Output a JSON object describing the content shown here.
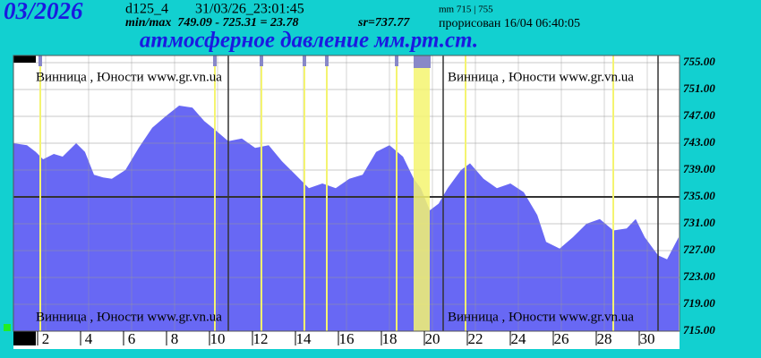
{
  "chart_data": {
    "type": "area",
    "period": "03/2026",
    "station": "d125_4",
    "timestamp": "31/03/26_23:01:45",
    "minmax": "min/max  749.09 - 725.31 = 23.78",
    "mean": "sr=737.77",
    "range_note": "mm 715 | 755",
    "drawn": "прорисован 16/04 06:40:05",
    "title": "атмосферное давление мм.рт.ст.",
    "watermark": "Винница , Юности  www.gr.vn.ua",
    "x": [
      0.5,
      1.13,
      1.54,
      1.88,
      2.38,
      2.79,
      3.42,
      3.83,
      4.25,
      4.67,
      5.08,
      5.71,
      6.33,
      6.96,
      7.58,
      8.21,
      8.83,
      9.38,
      9.88,
      10.5,
      11.13,
      11.75,
      12.38,
      13,
      13.63,
      14.25,
      14.88,
      15.5,
      16.13,
      16.75,
      17.38,
      18,
      18.63,
      19.13,
      19.46,
      19.88,
      20.29,
      20.71,
      21.33,
      21.75,
      22.38,
      23,
      23.63,
      24.25,
      24.88,
      25.29,
      25.92,
      26.54,
      27.17,
      27.79,
      28.42,
      29.04,
      29.46,
      29.88,
      30.5,
      30.92,
      31.46
    ],
    "series": [
      {
        "color": "#6868f4",
        "values": [
          743.0,
          742.7,
          741.7,
          740.6,
          741.4,
          741.0,
          743.0,
          741.7,
          738.3,
          737.9,
          737.7,
          739.0,
          742.3,
          745.3,
          747.0,
          748.6,
          748.3,
          746.3,
          745.0,
          743.3,
          743.7,
          742.3,
          742.7,
          740.3,
          738.3,
          736.3,
          737.0,
          736.3,
          737.7,
          738.3,
          741.7,
          742.7,
          741.0,
          737.7,
          736.3,
          733.0,
          734.0,
          736.3,
          739.0,
          740.0,
          737.7,
          736.3,
          737.0,
          735.7,
          732.3,
          728.3,
          727.3,
          729.0,
          731.0,
          731.7,
          730.0,
          730.3,
          731.7,
          729.0,
          726.3,
          725.7,
          729.0
        ]
      }
    ],
    "xlim": [
      0.5,
      31.5
    ],
    "xticks": [
      2,
      4,
      6,
      8,
      10,
      12,
      14,
      16,
      18,
      20,
      22,
      24,
      26,
      28,
      30
    ],
    "ylim": [
      715,
      756
    ],
    "yticks": [
      {
        "value": 755,
        "label": "755.00"
      },
      {
        "value": 751,
        "label": "751.00"
      },
      {
        "value": 747,
        "label": "747.00"
      },
      {
        "value": 743,
        "label": "743.00"
      },
      {
        "value": 739,
        "label": "739.00"
      },
      {
        "value": 735,
        "label": "735.00"
      },
      {
        "value": 731,
        "label": "731.00"
      },
      {
        "value": 727,
        "label": "727.00"
      },
      {
        "value": 723,
        "label": "723.00"
      },
      {
        "value": 719,
        "label": "719.00"
      },
      {
        "value": 715,
        "label": "715.00"
      }
    ],
    "reference_x": [
      10.5,
      20.5,
      30.5
    ],
    "reference_y": 735,
    "grid": true
  }
}
